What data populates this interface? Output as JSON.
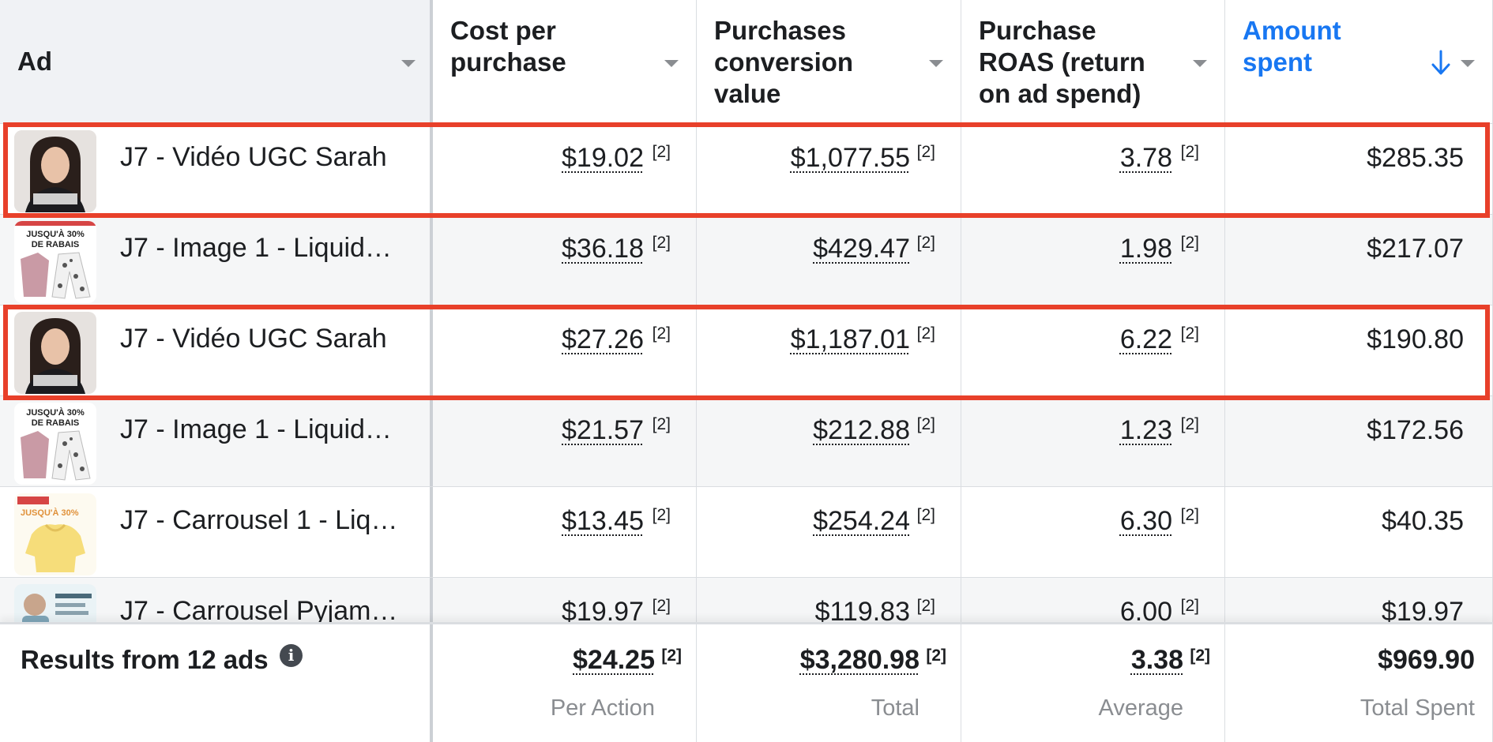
{
  "header": {
    "columns": [
      {
        "label": "Ad"
      },
      {
        "label": "Cost per purchase"
      },
      {
        "label": "Purchases conversion value"
      },
      {
        "label": "Purchase ROAS (return on ad spend)"
      },
      {
        "label": "Amount spent"
      }
    ],
    "accent_color": "#1877f2",
    "sorted_column": "Amount spent",
    "sort_direction": "descending"
  },
  "footnote_marker": "[2]",
  "rows": [
    {
      "name": "J7 - Vidéo UGC Sarah",
      "cost_per_purchase": "$19.02",
      "conversion_value": "$1,077.55",
      "roas": "3.78",
      "amount_spent": "$285.35",
      "thumb": "video-person-thumbnail",
      "highlighted": true
    },
    {
      "name": "J7 - Image 1 - Liquid…",
      "cost_per_purchase": "$36.18",
      "conversion_value": "$429.47",
      "roas": "1.98",
      "amount_spent": "$217.07",
      "thumb": "clothing-sale-thumbnail",
      "highlighted": false
    },
    {
      "name": "J7 - Vidéo UGC Sarah",
      "cost_per_purchase": "$27.26",
      "conversion_value": "$1,187.01",
      "roas": "6.22",
      "amount_spent": "$190.80",
      "thumb": "video-person-thumbnail",
      "highlighted": true
    },
    {
      "name": "J7 - Image 1 - Liquid…",
      "cost_per_purchase": "$21.57",
      "conversion_value": "$212.88",
      "roas": "1.23",
      "amount_spent": "$172.56",
      "thumb": "clothing-sale-thumbnail",
      "highlighted": false
    },
    {
      "name": "J7 - Carrousel 1 - Liq…",
      "cost_per_purchase": "$13.45",
      "conversion_value": "$254.24",
      "roas": "6.30",
      "amount_spent": "$40.35",
      "thumb": "yellow-hoodie-thumbnail",
      "highlighted": false
    },
    {
      "name": "J7 - Carrousel Pyjam…",
      "cost_per_purchase": "$19.97",
      "conversion_value": "$119.83",
      "roas": "6.00",
      "amount_spent": "$19.97",
      "thumb": "pyjama-carousel-thumbnail",
      "highlighted": false
    }
  ],
  "thumb_text": {
    "sale_banner": "JUSQU'À 30% DE RABAIS",
    "sale_line1": "JUSQU'À 30%",
    "sale_line2": "DE RABAIS"
  },
  "footer": {
    "title": "Results from 12 ads",
    "info_icon": "info-icon",
    "cost_per_purchase": "$24.25",
    "cost_per_purchase_sub": "Per Action",
    "conversion_value": "$3,280.98",
    "conversion_value_sub": "Total",
    "roas": "3.38",
    "roas_sub": "Average",
    "amount_spent": "$969.90",
    "amount_spent_sub": "Total Spent"
  },
  "colors": {
    "highlight_border": "#e8402a",
    "header_bg_ad": "#f0f2f5",
    "alt_row_bg": "#f5f6f7"
  }
}
